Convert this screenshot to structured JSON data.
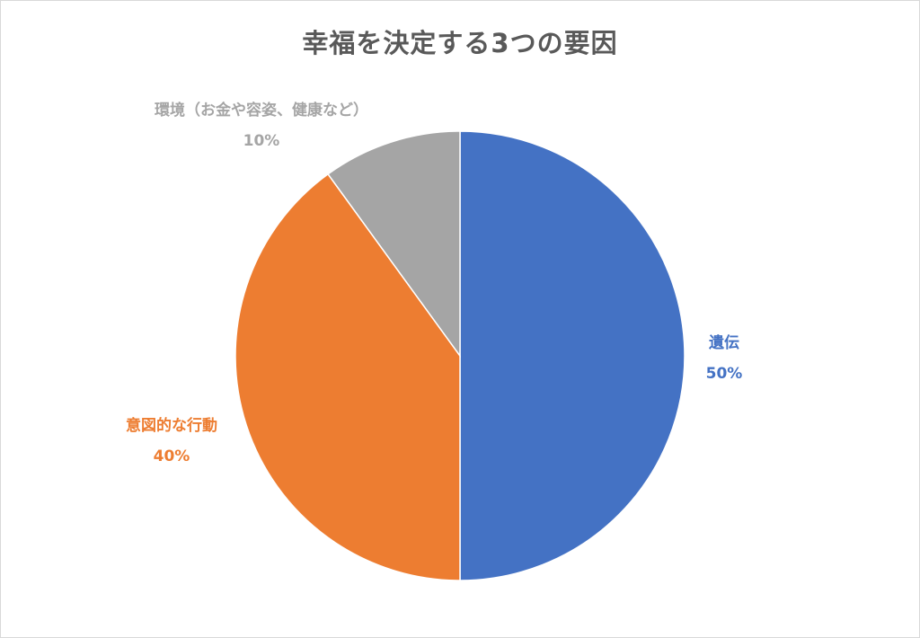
{
  "chart_data": {
    "type": "pie",
    "title": "幸福を決定する3つの要因",
    "categories": [
      "遺伝",
      "意図的な行動",
      "環境（お金や容姿、健康など）"
    ],
    "values": [
      50,
      40,
      10
    ],
    "value_labels": [
      "50%",
      "40%",
      "10%"
    ],
    "colors": [
      "#4472c4",
      "#ed7d31",
      "#a5a5a5"
    ],
    "start_angle_deg": 0,
    "direction": "clockwise",
    "legend": "none",
    "data_labels": "outside"
  }
}
